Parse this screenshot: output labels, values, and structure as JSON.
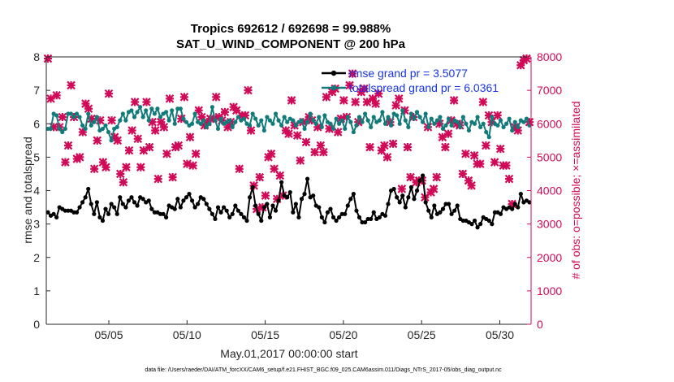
{
  "chart_data": {
    "type": "line",
    "title": "Tropics 692612 / 692698 = 99.988%",
    "subtitle": "SAT_U_WIND_COMPONENT @ 200 hPa",
    "xlabel": "May.01,2017 00:00:00 start",
    "ylabel": "rmse and totalspread",
    "ylabel_right": "# of obs: o=possible; ×=assimilated",
    "ylim": [
      0,
      8
    ],
    "ylim_right": [
      0,
      8000
    ],
    "yticks": [
      "0",
      "1",
      "2",
      "3",
      "4",
      "5",
      "6",
      "7",
      "8"
    ],
    "yticks_right": [
      "0",
      "1000",
      "2000",
      "3000",
      "4000",
      "5000",
      "6000",
      "7000",
      "8000"
    ],
    "x_tick_labels": [
      "05/05",
      "05/10",
      "05/15",
      "05/20",
      "05/25",
      "05/30"
    ],
    "x_tick_days": [
      5,
      10,
      15,
      20,
      25,
      30
    ],
    "xlim_days": [
      1,
      32
    ],
    "legend_position": "top-right",
    "series": [
      {
        "name": "rmse",
        "legend": "rmse grand pr = 3.5077",
        "color": "#000000",
        "values": [
          3.35,
          3.25,
          3.3,
          3.2,
          3.5,
          3.45,
          3.4,
          3.4,
          3.4,
          3.35,
          3.35,
          3.5,
          3.65,
          3.8,
          4.05,
          3.6,
          3.3,
          3.65,
          3.2,
          3.1,
          3.45,
          3.3,
          3.6,
          3.5,
          3.3,
          3.8,
          3.6,
          3.5,
          3.7,
          3.8,
          3.65,
          3.55,
          3.8,
          3.75,
          3.65,
          3.7,
          3.45,
          3.35,
          3.35,
          3.3,
          3.3,
          3.2,
          3.55,
          3.5,
          3.45,
          3.75,
          3.5,
          3.7,
          3.8,
          3.9,
          3.7,
          3.5,
          3.6,
          3.8,
          3.75,
          3.6,
          3.45,
          3.3,
          3.15,
          3.5,
          3.35,
          3.5,
          3.4,
          3.2,
          3.3,
          3.55,
          3.4,
          3.3,
          3.2,
          3.1,
          3.8,
          4.1,
          3.55,
          3.3,
          3.1,
          3.5,
          3.6,
          3.2,
          3.55,
          3.4,
          3.7,
          4.25,
          3.85,
          3.8,
          3.95,
          3.35,
          3.6,
          3.2,
          3.75,
          3.9,
          4.35,
          3.8,
          3.85,
          3.55,
          3.5,
          3.2,
          3.05,
          3.35,
          3.45,
          3.2,
          3.1,
          3.2,
          3.3,
          3.3,
          3.55,
          3.75,
          3.9,
          3.4,
          3.2,
          3.05,
          3.05,
          3.15,
          3.15,
          3.35,
          3.15,
          3.2,
          3.3,
          3.25,
          3.6,
          4.0,
          4.05,
          3.8,
          3.65,
          3.85,
          3.5,
          3.8,
          4.1,
          3.75,
          4.0,
          4.3,
          4.45,
          3.65,
          3.4,
          3.2,
          3.55,
          3.3,
          3.35,
          3.45,
          3.6,
          3.6,
          3.3,
          3.4,
          3.55,
          3.15,
          3.1,
          3.1,
          3.05,
          3.0,
          3.1,
          2.9,
          3.0,
          3.2,
          3.15,
          3.1,
          3.0,
          3.35,
          3.35,
          3.3,
          3.5,
          3.45,
          3.5,
          3.45,
          3.6,
          3.5,
          3.9,
          3.65,
          3.7,
          3.65
        ],
        "marker": "filled circle"
      },
      {
        "name": "totalspread",
        "legend": "totalspread grand pr = 6.0361",
        "color": "#117a7a",
        "values": [
          5.85,
          5.85,
          6.3,
          6.25,
          5.85,
          5.75,
          5.85,
          6.3,
          6.3,
          6.2,
          6.3,
          6.2,
          5.95,
          5.85,
          6.3,
          5.95,
          6.05,
          6.2,
          5.8,
          5.85,
          5.95,
          5.75,
          5.5,
          5.85,
          5.9,
          6.1,
          6.3,
          6.1,
          6.35,
          6.4,
          6.2,
          6.35,
          6.5,
          6.2,
          6.4,
          6.1,
          6.45,
          6.3,
          6.45,
          6.2,
          6.3,
          6.35,
          6.1,
          6.4,
          6.0,
          6.45,
          6.45,
          6.15,
          6.05,
          5.95,
          6.0,
          6.3,
          6.05,
          6.0,
          6.1,
          5.9,
          6.0,
          6.5,
          6.1,
          5.85,
          6.15,
          6.0,
          6.05,
          6.1,
          5.9,
          6.05,
          6.2,
          6.1,
          6.15,
          6.0,
          5.95,
          6.3,
          6.15,
          5.95,
          6.1,
          5.8,
          6.2,
          6.1,
          6.0,
          6.3,
          6.1,
          5.95,
          6.2,
          6.05,
          6.15,
          6.1,
          5.95,
          6.05,
          6.1,
          5.85,
          6.05,
          6.3,
          6.1,
          6.0,
          6.2,
          5.9,
          6.25,
          6.05,
          6.0,
          5.85,
          6.15,
          6.0,
          6.1,
          5.85,
          6.2,
          6.05,
          5.75,
          5.95,
          6.2,
          6.05,
          6.3,
          6.1,
          5.9,
          6.2,
          6.05,
          6.1,
          6.35,
          6.0,
          6.2,
          5.95,
          6.3,
          6.25,
          6.0,
          6.4,
          6.1,
          5.9,
          6.3,
          6.15,
          6.35,
          6.2,
          6.05,
          6.3,
          5.9,
          6.15,
          6.0,
          6.1,
          6.2,
          5.85,
          5.95,
          6.15,
          5.95,
          6.1,
          6.05,
          5.9,
          6.2,
          6.0,
          5.8,
          6.05,
          6.0,
          6.2,
          5.9,
          6.0,
          5.75,
          5.6,
          6.2,
          6.0,
          5.95,
          6.1,
          5.9,
          6.0,
          6.15,
          5.8,
          6.05,
          5.9,
          6.1,
          6.05,
          6.15,
          5.95
        ],
        "marker": "filled circle"
      },
      {
        "name": "obs assimilated",
        "axis": "right",
        "color": "#d10a58",
        "marker": "x",
        "values": [
          7950,
          6750,
          5900,
          6850,
          5900,
          6200,
          4850,
          5350,
          7150,
          6200,
          4950,
          5000,
          5750,
          6600,
          6450,
          6150,
          4650,
          5500,
          6100,
          4850,
          4700,
          6900,
          6100,
          5600,
          5500,
          4500,
          4250,
          4700,
          5200,
          5800,
          6650,
          5550,
          4700,
          5200,
          6650,
          5300,
          6050,
          5800,
          4350,
          6050,
          5900,
          5100,
          6750,
          4400,
          5300,
          5350,
          6150,
          6800,
          4800,
          5600,
          4750,
          5100,
          6400,
          6200,
          5950,
          6050,
          6150,
          6150,
          6800,
          6200,
          6100,
          6350,
          5900,
          6050,
          6500,
          6400,
          4650,
          6250,
          6250,
          7000,
          5800,
          4150,
          3450,
          4400,
          3500,
          3850,
          5000,
          5100,
          4650,
          3750,
          4450,
          3850,
          5800,
          5700,
          6700,
          5950,
          5650,
          4900,
          6050,
          5450,
          6200,
          6100,
          5150,
          5900,
          5350,
          5150,
          6800,
          5850,
          6950,
          7050,
          5750,
          6150,
          6700,
          6200,
          7150,
          7500,
          6650,
          6050,
          6950,
          7050,
          6650,
          5300,
          6750,
          6600,
          6900,
          5200,
          5350,
          5000,
          6050,
          5400,
          6550,
          6750,
          4050,
          6400,
          5300,
          4400,
          6200,
          4250,
          4300,
          4300,
          3800,
          5900,
          3950,
          4050,
          4400,
          6000,
          5600,
          5300,
          5700,
          6100,
          6700,
          6000,
          5950,
          4500,
          5100,
          4300,
          4150,
          5050,
          4800,
          4800,
          6650,
          5350,
          6250,
          6050,
          4850,
          6250,
          5250,
          4750,
          4750,
          4350,
          3600,
          5900,
          5800,
          7750,
          7900,
          7950,
          6050
        ]
      }
    ]
  },
  "footer": "data file: /Users/raeder/DAI/ATM_forcXX/CAM6_setup/f.e21.FHIST_BGC.f09_025.CAM6assim.011/Diags_NTrS_2017-05/obs_diag_output.nc"
}
